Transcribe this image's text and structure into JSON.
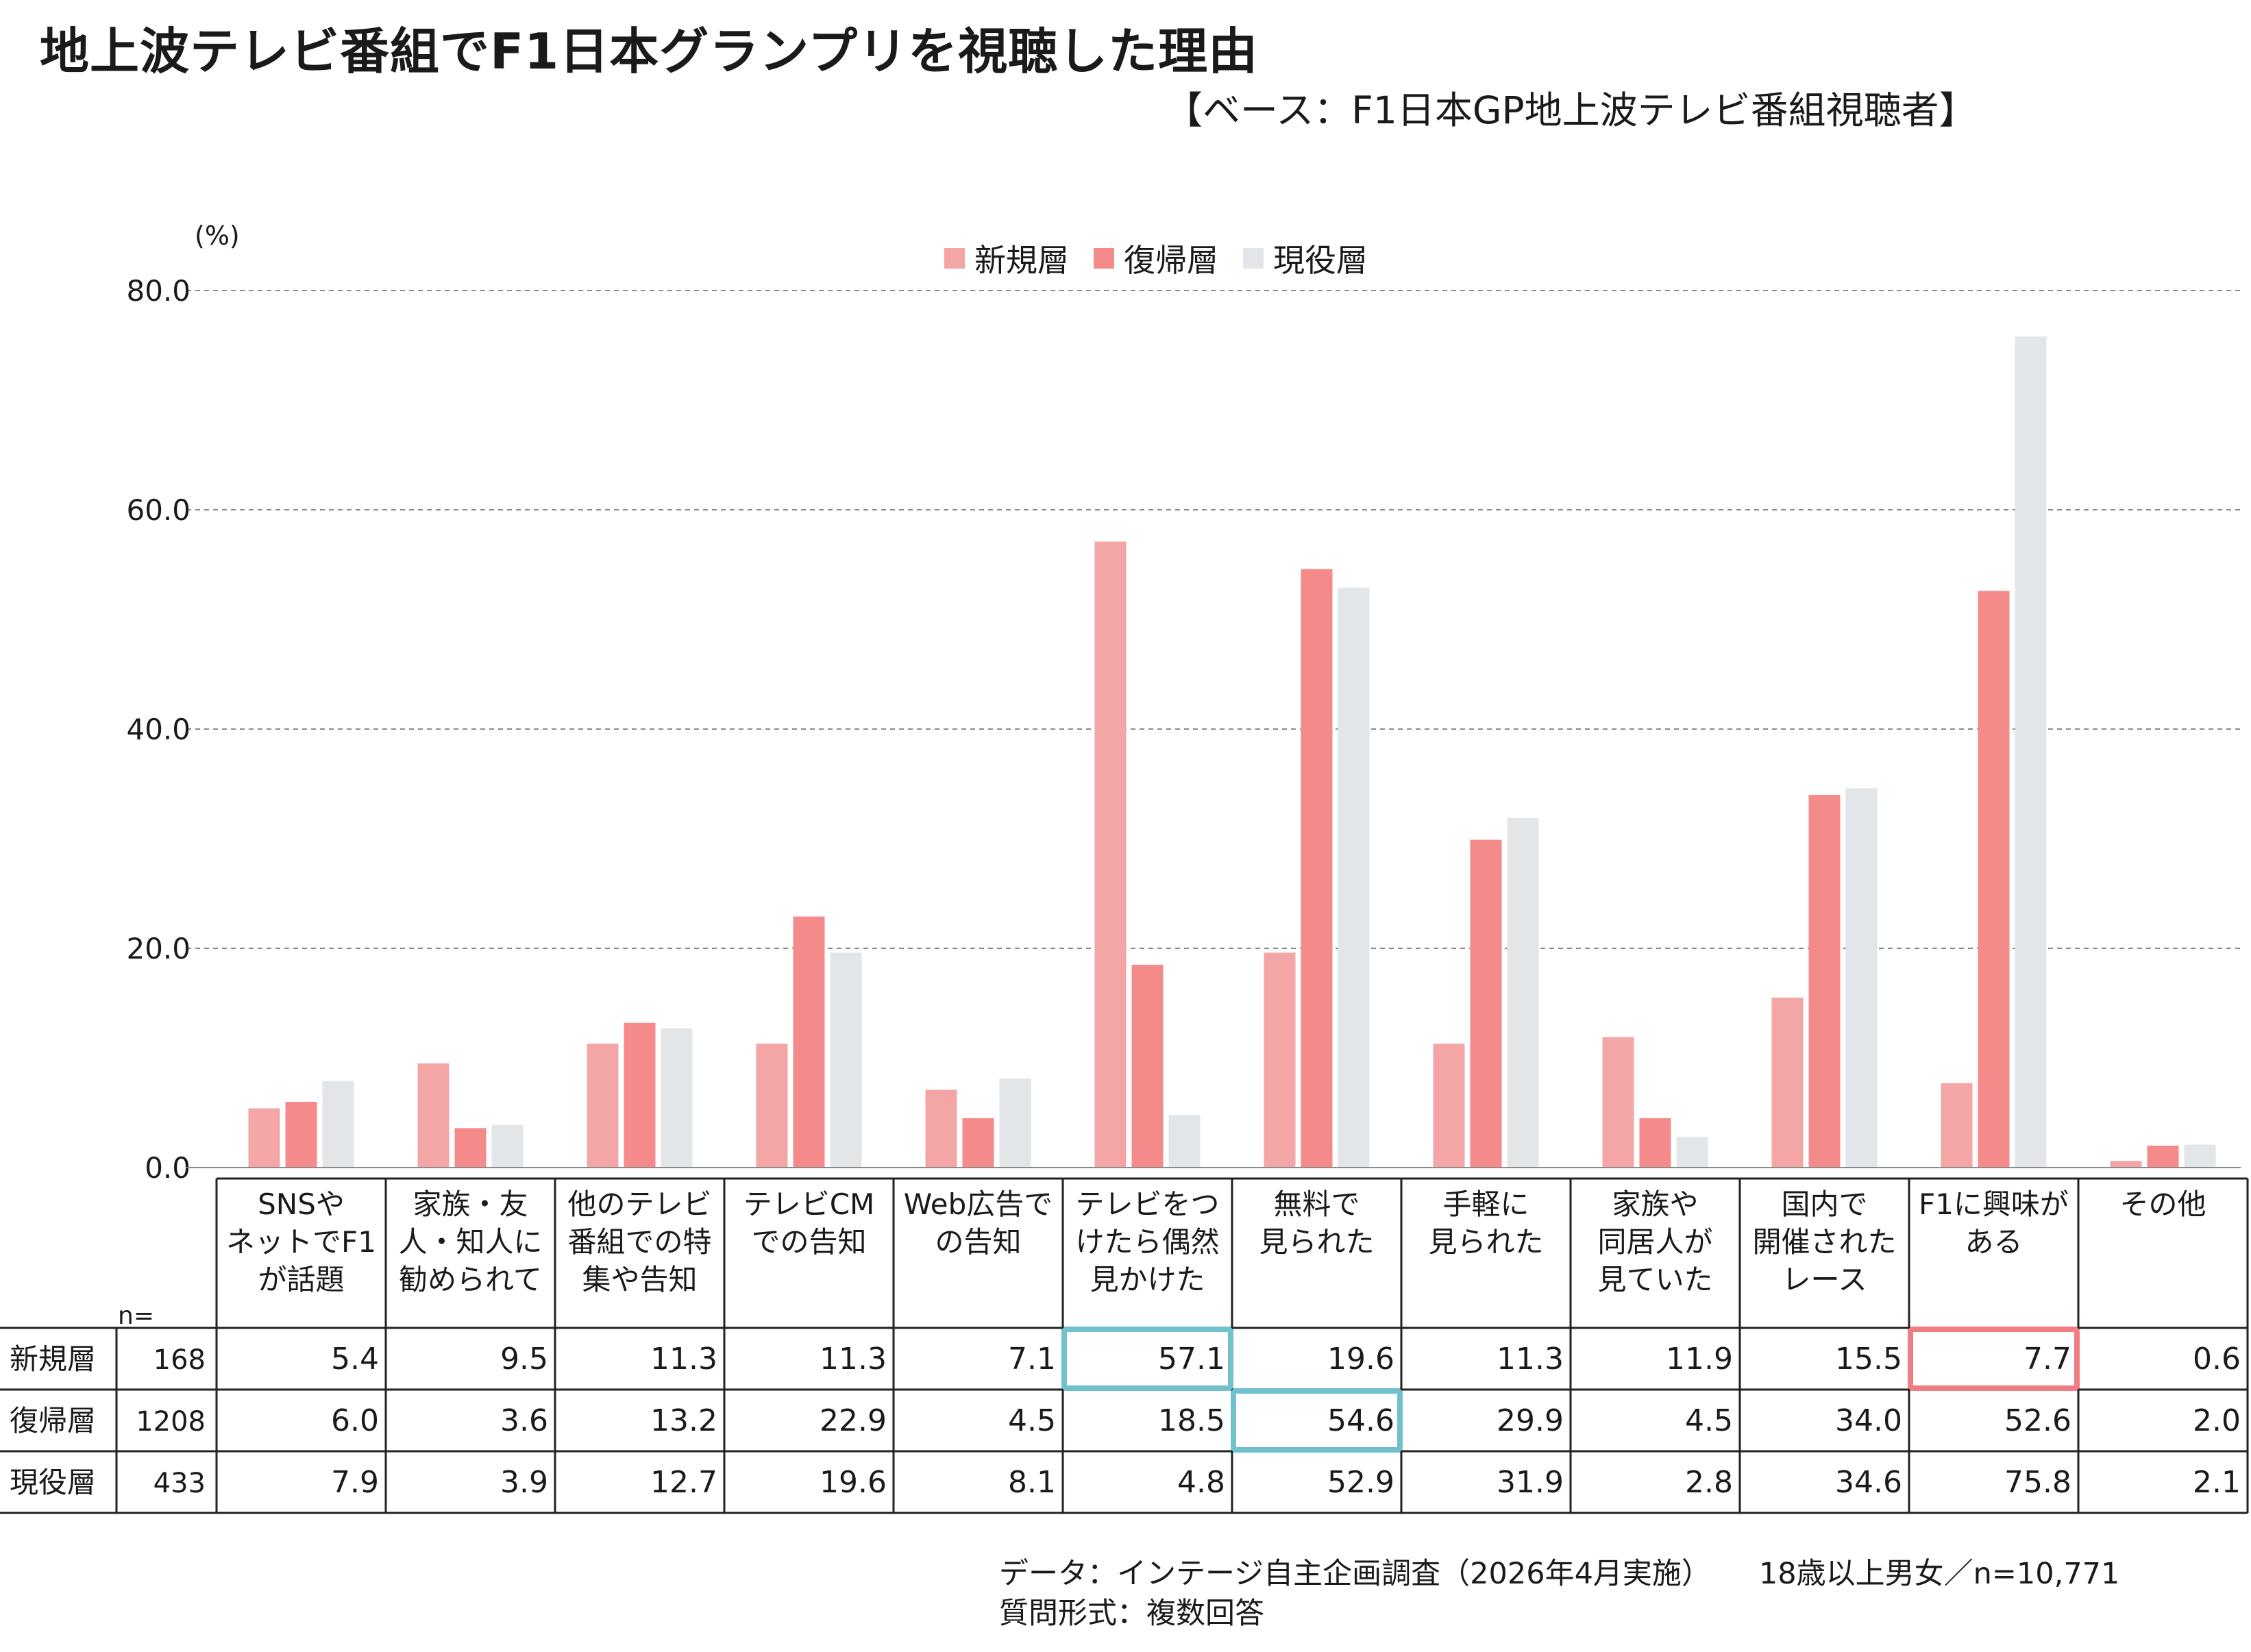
{
  "title": "地上波テレビ番組でF1日本グランプリを視聴した理由",
  "base_label": "【ベース：F1日本GP地上波テレビ番組視聴者】",
  "footer": {
    "line1_data": "データ：インテージ自主企画調査（2026年4月実施）",
    "line1_sample": "18歳以上男女／n=10,771",
    "line2": "質問形式：複数回答"
  },
  "colors": {
    "新規層": "#f4a6a6",
    "復帰層": "#f58a8a",
    "現役層": "#e2e6e9",
    "highlight_teal": "#70c1cc",
    "highlight_pink": "#f07c84"
  },
  "chart_data": {
    "type": "bar",
    "unit": "(%)",
    "ylim": [
      0,
      80
    ],
    "yticks": [
      "0.0",
      "20.0",
      "40.0",
      "60.0",
      "80.0"
    ],
    "grid": true,
    "legend_position": "top-center",
    "categories": [
      "SNSやネットでF1が話題",
      "家族・友人・知人に勧められて",
      "他のテレビ番組での特集や告知",
      "テレビCMでの告知",
      "Web広告での告知",
      "テレビをつけたら偶然見かけた",
      "無料で見られた",
      "手軽に見られた",
      "家族や同居人が見ていた",
      "国内で開催されたレース",
      "F1に興味がある",
      "その他"
    ],
    "category_lines": [
      [
        "SNSや",
        "ネットでF1",
        "が話題"
      ],
      [
        "家族・友",
        "人・知人に",
        "勧められて"
      ],
      [
        "他のテレビ",
        "番組での特",
        "集や告知"
      ],
      [
        "テレビCM",
        "での告知"
      ],
      [
        "Web広告で",
        "の告知"
      ],
      [
        "テレビをつ",
        "けたら偶然",
        "見かけた"
      ],
      [
        "無料で",
        "見られた"
      ],
      [
        "手軽に",
        "見られた"
      ],
      [
        "家族や",
        "同居人が",
        "見ていた"
      ],
      [
        "国内で",
        "開催された",
        "レース"
      ],
      [
        "F1に興味が",
        "ある"
      ],
      [
        "その他"
      ]
    ],
    "n_label": "n=",
    "series": [
      {
        "name": "新規層",
        "n": "168",
        "values": [
          5.4,
          9.5,
          11.3,
          11.3,
          7.1,
          57.1,
          19.6,
          11.3,
          11.9,
          15.5,
          7.7,
          0.6
        ]
      },
      {
        "name": "復帰層",
        "n": "1208",
        "values": [
          6.0,
          3.6,
          13.2,
          22.9,
          4.5,
          18.5,
          54.6,
          29.9,
          4.5,
          34.0,
          52.6,
          2.0
        ]
      },
      {
        "name": "現役層",
        "n": "433",
        "values": [
          7.9,
          3.9,
          12.7,
          19.6,
          8.1,
          4.8,
          52.9,
          31.9,
          2.8,
          34.6,
          75.8,
          2.1
        ]
      }
    ],
    "highlights": [
      {
        "series": 0,
        "category": 5,
        "color": "teal"
      },
      {
        "series": 1,
        "category": 6,
        "color": "teal"
      },
      {
        "series": 0,
        "category": 10,
        "color": "pink"
      }
    ]
  }
}
